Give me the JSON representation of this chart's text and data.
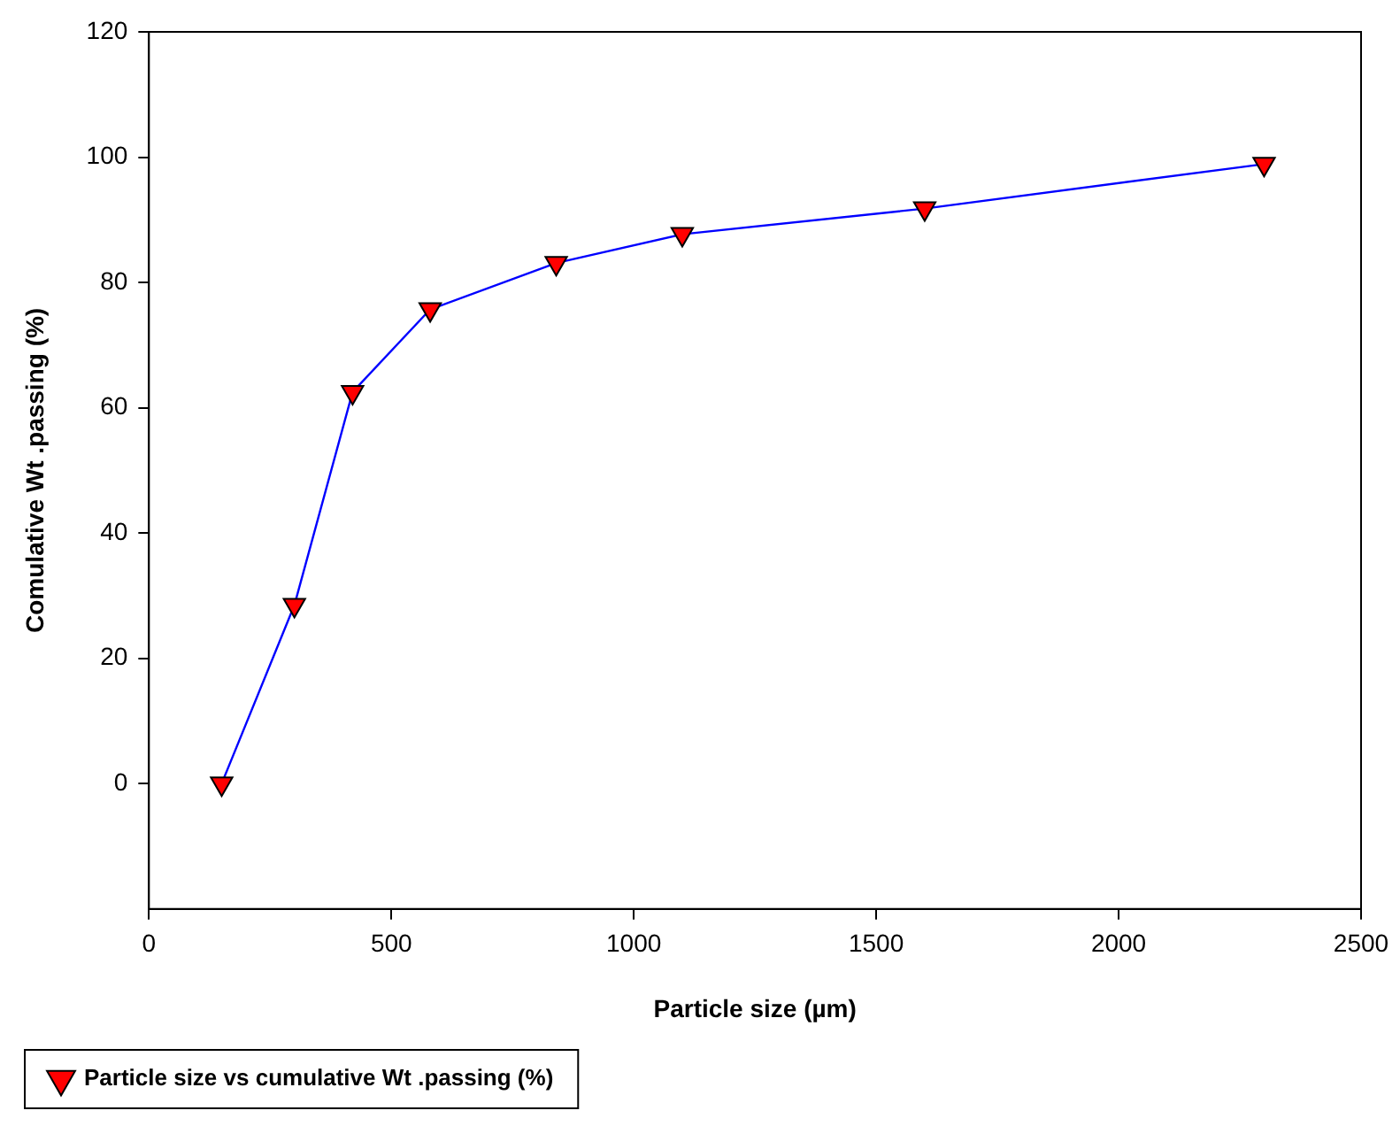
{
  "chart_data": {
    "type": "line",
    "xlabel": "Particle size (µm)",
    "ylabel": "Comulative Wt .passing (%)",
    "x": [
      150,
      300,
      420,
      580,
      840,
      1100,
      1600,
      2300
    ],
    "series": [
      {
        "name": "Particle size vs cumulative Wt .passing (%)",
        "color": "#0000ff",
        "colors": [
          "#ff0000",
          "#ff0000",
          "#ff0000",
          "#ff0000",
          "#ff0000",
          "#ff0000",
          "#ff0000",
          "#ff0000"
        ],
        "values": [
          0,
          28.5,
          62.5,
          75.7,
          83.1,
          87.7,
          91.8,
          98.9
        ]
      }
    ],
    "xlim": [
      0,
      2500
    ],
    "xticks": [
      0,
      500,
      1000,
      1500,
      2000,
      2500
    ],
    "ylim": [
      -20,
      120
    ],
    "yticks": [
      0,
      20,
      40,
      60,
      80,
      100,
      120
    ],
    "grid": false,
    "legend": "bottom left",
    "marker": "triangle",
    "line_style": "solid"
  }
}
